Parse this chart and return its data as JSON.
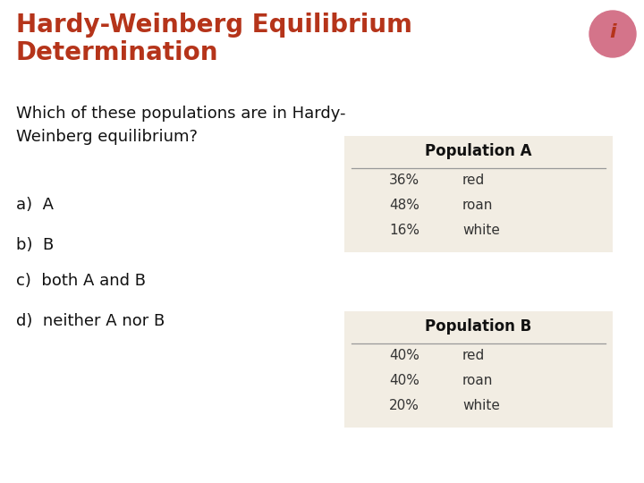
{
  "title_line1": "Hardy-Weinberg Equilibrium",
  "title_line2": "Determination",
  "title_color": "#b5341a",
  "title_fontsize": 20,
  "question": "Which of these populations are in Hardy-\nWeinberg equilibrium?",
  "question_fontsize": 13,
  "choices": [
    "a)  A",
    "b)  B",
    "c)  both A and B",
    "d)  neither A nor B"
  ],
  "choices_fontsize": 13,
  "pop_a_title": "Population A",
  "pop_a_data": [
    [
      "36%",
      "red"
    ],
    [
      "48%",
      "roan"
    ],
    [
      "16%",
      "white"
    ]
  ],
  "pop_b_title": "Population B",
  "pop_b_data": [
    [
      "40%",
      "red"
    ],
    [
      "40%",
      "roan"
    ],
    [
      "20%",
      "white"
    ]
  ],
  "table_bg": "#f2ede3",
  "table_header_line": "#999999",
  "table_title_fontsize": 12,
  "table_row_fontsize": 11,
  "bg_color": "#ffffff",
  "icon_color": "#b5341a",
  "icon_bg": "#d4748a",
  "fig_width": 7.2,
  "fig_height": 5.4,
  "dpi": 100
}
